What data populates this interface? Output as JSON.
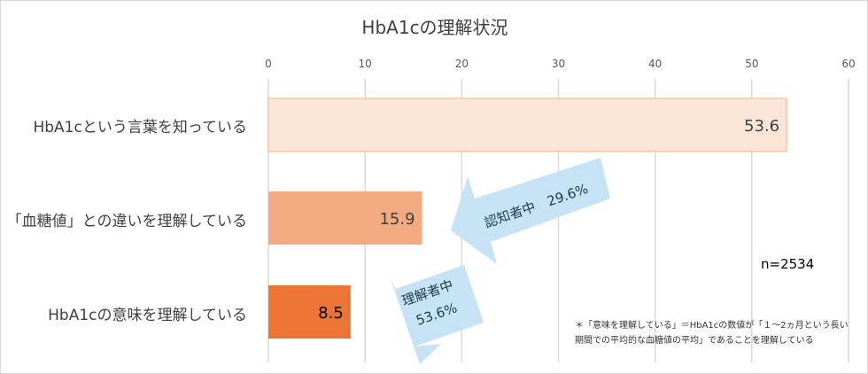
{
  "chart_data": {
    "type": "bar",
    "orientation": "horizontal",
    "title": "HbA1cの理解状況",
    "categories": [
      "HbA1cという言葉を知っている",
      "「血糖値」との違いを理解している",
      "HbA1cの意味を理解している"
    ],
    "values": [
      53.6,
      15.9,
      8.5
    ],
    "value_labels": [
      "53.6",
      "15.9",
      "8.5"
    ],
    "colors": [
      "#fbe5d6",
      "#f4aa80",
      "#ec7434"
    ],
    "xlim": [
      0,
      60
    ],
    "ticks": [
      0,
      10,
      20,
      30,
      40,
      50,
      60
    ],
    "grid": true,
    "annotations": {
      "arrow1": "認知者中　29.6%",
      "arrow2_line1": "理解者中",
      "arrow2_line2": "53.6%",
      "n": "n=2534",
      "note_line1": "＊「意味を理解している」＝HbA1cの数値が「１～2ヵ月という長い",
      "note_line2": "期間での平均的な血糖値の平均」であることを理解している"
    }
  }
}
